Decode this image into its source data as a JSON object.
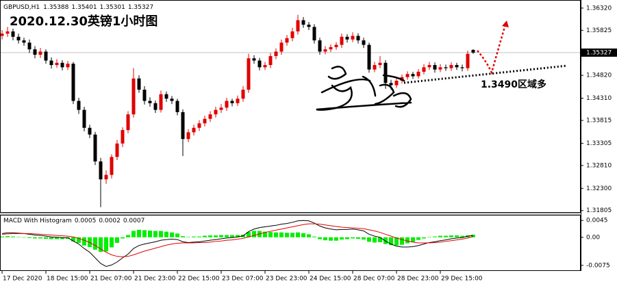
{
  "chart_data": {
    "type": "candlestick",
    "symbol": "GBPUSD,H1",
    "title": "2020.12.30英镑1小时图",
    "annotation": "1.3490区域多",
    "up_color": "#e00000",
    "down_color": "#000000",
    "grid": false,
    "categories": [
      "17 Dec 2020",
      null,
      null,
      null,
      null,
      null,
      null,
      null,
      "18 Dec 15:00",
      null,
      null,
      null,
      null,
      null,
      null,
      null,
      "21 Dec 07:00",
      null,
      null,
      null,
      null,
      null,
      null,
      null,
      "21 Dec 23:00",
      null,
      null,
      null,
      null,
      null,
      null,
      null,
      "22 Dec 15:00",
      null,
      null,
      null,
      null,
      null,
      null,
      null,
      "23 Dec 07:00",
      null,
      null,
      null,
      null,
      null,
      null,
      null,
      "23 Dec 23:00",
      null,
      null,
      null,
      null,
      null,
      null,
      null,
      "24 Dec 15:00",
      null,
      null,
      null,
      null,
      null,
      null,
      null,
      "28 Dec 07:00",
      null,
      null,
      null,
      null,
      null,
      null,
      null,
      "28 Dec 23:00",
      null,
      null,
      null,
      null,
      null,
      null,
      null,
      "29 Dec 15:00",
      null,
      null,
      null,
      null,
      null,
      null
    ],
    "open": [
      1.357,
      1.3575,
      1.358,
      1.3568,
      1.356,
      1.3555,
      1.354,
      1.3528,
      1.3535,
      1.3515,
      1.3505,
      1.351,
      1.35,
      1.3508,
      1.3425,
      1.3405,
      1.3365,
      1.335,
      1.329,
      1.325,
      1.326,
      1.33,
      1.333,
      1.336,
      1.3395,
      1.3475,
      1.345,
      1.3425,
      1.342,
      1.3405,
      1.344,
      1.343,
      1.3425,
      1.34,
      1.334,
      1.3355,
      1.3365,
      1.3375,
      1.3385,
      1.3395,
      1.3405,
      1.341,
      1.3425,
      1.342,
      1.343,
      1.345,
      1.352,
      1.3515,
      1.35,
      1.3505,
      1.3525,
      1.3535,
      1.3555,
      1.3565,
      1.358,
      1.3605,
      1.3595,
      1.359,
      1.356,
      1.3535,
      1.354,
      1.3545,
      1.355,
      1.3568,
      1.3562,
      1.357,
      1.356,
      1.355,
      1.3495,
      1.3505,
      1.351,
      1.3465,
      1.346,
      1.347,
      1.3478,
      1.3485,
      1.348,
      1.349,
      1.35,
      1.3505,
      1.3495,
      1.35,
      1.3498,
      1.3505,
      1.35,
      1.3498,
      1.35388
    ],
    "high": [
      1.3583,
      1.359,
      1.3586,
      1.3575,
      1.3566,
      1.3562,
      1.3547,
      1.3543,
      1.354,
      1.3522,
      1.3518,
      1.3516,
      1.3514,
      1.3512,
      1.3432,
      1.3412,
      1.3372,
      1.3356,
      1.3298,
      1.327,
      1.3306,
      1.3338,
      1.3366,
      1.3402,
      1.3498,
      1.3482,
      1.3458,
      1.3433,
      1.3426,
      1.3448,
      1.3446,
      1.3436,
      1.343,
      1.3406,
      1.3362,
      1.3372,
      1.3382,
      1.3392,
      1.3402,
      1.3412,
      1.3418,
      1.3432,
      1.343,
      1.3437,
      1.3458,
      1.353,
      1.3527,
      1.3521,
      1.3512,
      1.3532,
      1.3542,
      1.3562,
      1.3572,
      1.3588,
      1.3617,
      1.3612,
      1.3601,
      1.3596,
      1.3566,
      1.3547,
      1.3551,
      1.3556,
      1.3575,
      1.3574,
      1.3578,
      1.3576,
      1.3566,
      1.3555,
      1.3512,
      1.3525,
      1.3516,
      1.3472,
      1.3476,
      1.3484,
      1.3491,
      1.349,
      1.3496,
      1.3507,
      1.3512,
      1.3511,
      1.3507,
      1.3506,
      1.3511,
      1.351,
      1.3506,
      1.3537,
      1.35401
    ],
    "low": [
      1.3562,
      1.3568,
      1.356,
      1.3553,
      1.3548,
      1.3532,
      1.352,
      1.3521,
      1.3508,
      1.3497,
      1.3499,
      1.3493,
      1.3494,
      1.3418,
      1.3396,
      1.3357,
      1.3342,
      1.3282,
      1.3188,
      1.324,
      1.3252,
      1.3293,
      1.3322,
      1.3353,
      1.3388,
      1.3443,
      1.3417,
      1.3412,
      1.3398,
      1.3399,
      1.3423,
      1.3418,
      1.3393,
      1.3302,
      1.3333,
      1.3348,
      1.3358,
      1.3368,
      1.3378,
      1.3388,
      1.3398,
      1.3403,
      1.3413,
      1.3414,
      1.3423,
      1.3443,
      1.3508,
      1.3493,
      1.3494,
      1.3498,
      1.3518,
      1.3528,
      1.3548,
      1.3558,
      1.3573,
      1.3588,
      1.3583,
      1.3553,
      1.3528,
      1.3529,
      1.3534,
      1.3539,
      1.3543,
      1.3555,
      1.3556,
      1.3553,
      1.3543,
      1.3488,
      1.3489,
      1.3498,
      1.3452,
      1.345,
      1.3454,
      1.3464,
      1.3472,
      1.3474,
      1.3475,
      1.3484,
      1.3494,
      1.3488,
      1.3489,
      1.3492,
      1.3492,
      1.3494,
      1.3491,
      1.3492,
      1.35301
    ],
    "close": [
      1.3575,
      1.358,
      1.3568,
      1.356,
      1.3555,
      1.354,
      1.3528,
      1.3535,
      1.3515,
      1.3505,
      1.351,
      1.35,
      1.3508,
      1.3425,
      1.3405,
      1.3365,
      1.335,
      1.329,
      1.325,
      1.326,
      1.33,
      1.333,
      1.336,
      1.3395,
      1.3475,
      1.345,
      1.3425,
      1.342,
      1.3405,
      1.344,
      1.343,
      1.3425,
      1.34,
      1.334,
      1.3355,
      1.3365,
      1.3375,
      1.3385,
      1.3395,
      1.3405,
      1.341,
      1.3425,
      1.342,
      1.343,
      1.345,
      1.352,
      1.3515,
      1.35,
      1.3505,
      1.3525,
      1.3535,
      1.3555,
      1.3565,
      1.358,
      1.3605,
      1.3595,
      1.359,
      1.356,
      1.3535,
      1.354,
      1.3545,
      1.355,
      1.3568,
      1.3562,
      1.357,
      1.356,
      1.355,
      1.3495,
      1.3505,
      1.351,
      1.3465,
      1.346,
      1.347,
      1.3478,
      1.3485,
      1.348,
      1.349,
      1.35,
      1.3505,
      1.3495,
      1.35,
      1.3498,
      1.3505,
      1.35,
      1.3498,
      1.353,
      1.35327
    ],
    "ylim": [
      1.3177,
      1.3647
    ],
    "yticks": [
      {
        "value": 1.3632,
        "label": "1.36320"
      },
      1.35825,
      {
        "value": 1.3482,
        "label": "1.34820"
      },
      {
        "value": 1.3431,
        "label": "1.34310"
      },
      1.33815,
      1.33305,
      {
        "value": 1.3281,
        "label": "1.32810"
      },
      {
        "value": 1.323,
        "label": "1.32300"
      },
      1.31805
    ],
    "indicator": {
      "type": "macd",
      "title": "MACD With Histogram",
      "ylim": [
        -0.009,
        0.006
      ],
      "yticks": [
        0.0045,
        {
          "value": 0,
          "label": "0.00"
        },
        -0.0075
      ],
      "series": [
        {
          "style": "line",
          "color": "#000000",
          "values": [
            0.001,
            0.0012,
            0.0012,
            0.0011,
            0.001,
            0.0008,
            0.0006,
            0.0005,
            0.0003,
            0.0001,
            0.0,
            -0.0001,
            -0.0001,
            -0.001,
            -0.0018,
            -0.003,
            -0.004,
            -0.0055,
            -0.007,
            -0.0078,
            -0.0074,
            -0.0066,
            -0.0055,
            -0.0045,
            -0.003,
            -0.0022,
            -0.0018,
            -0.0015,
            -0.0012,
            -0.0008,
            -0.0006,
            -0.0005,
            -0.0006,
            -0.0012,
            -0.0014,
            -0.0013,
            -0.0012,
            -0.001,
            -0.0008,
            -0.0006,
            -0.0004,
            -0.0002,
            -0.0001,
            0.0001,
            0.0004,
            0.0015,
            0.0022,
            0.0026,
            0.0028,
            0.003,
            0.0032,
            0.0035,
            0.0037,
            0.004,
            0.0044,
            0.0045,
            0.0044,
            0.0038,
            0.003,
            0.0025,
            0.0022,
            0.002,
            0.0021,
            0.0021,
            0.0022,
            0.002,
            0.0017,
            0.0008,
            0.0003,
            0.0,
            -0.001,
            -0.0018,
            -0.0024,
            -0.0026,
            -0.0026,
            -0.0025,
            -0.0022,
            -0.0018,
            -0.0014,
            -0.0012,
            -0.0009,
            -0.0007,
            -0.0004,
            -0.0002,
            -0.0001,
            0.0003,
            0.0005
          ]
        },
        {
          "style": "line",
          "color": "#e00000",
          "values": [
            0.0008,
            0.0009,
            0.001,
            0.001,
            0.001,
            0.001,
            0.0009,
            0.0008,
            0.0007,
            0.0006,
            0.0005,
            0.0004,
            0.0003,
            0.0001,
            -0.0003,
            -0.0008,
            -0.0014,
            -0.0022,
            -0.0031,
            -0.004,
            -0.0047,
            -0.0051,
            -0.0052,
            -0.0051,
            -0.0047,
            -0.0042,
            -0.0037,
            -0.0033,
            -0.0029,
            -0.0025,
            -0.0021,
            -0.0018,
            -0.0016,
            -0.0015,
            -0.0015,
            -0.0015,
            -0.0014,
            -0.0014,
            -0.0013,
            -0.0011,
            -0.001,
            -0.0008,
            -0.0007,
            -0.0005,
            -0.0003,
            0.0001,
            0.0005,
            0.0009,
            0.0013,
            0.0016,
            0.0019,
            0.0022,
            0.0025,
            0.0028,
            0.0031,
            0.0034,
            0.0036,
            0.0036,
            0.0035,
            0.0033,
            0.0031,
            0.0029,
            0.0027,
            0.0026,
            0.0025,
            0.0024,
            0.0023,
            0.002,
            0.0017,
            0.0013,
            0.0008,
            0.0003,
            -0.0002,
            -0.0006,
            -0.001,
            -0.0013,
            -0.0015,
            -0.0015,
            -0.0015,
            -0.0014,
            -0.0013,
            -0.0011,
            -0.0009,
            -0.0007,
            -0.0005,
            -0.0002,
            0.0002
          ]
        },
        {
          "style": "bar",
          "color": "#00ee00",
          "values": [
            0.0002,
            0.0003,
            0.0002,
            0.0001,
            0.0,
            -0.0002,
            -0.0003,
            -0.0003,
            -0.0004,
            -0.0005,
            -0.0005,
            -0.0005,
            -0.0004,
            -0.0011,
            -0.0015,
            -0.0022,
            -0.0026,
            -0.0033,
            -0.0039,
            -0.0038,
            -0.0027,
            -0.0015,
            -0.0003,
            0.0006,
            0.0017,
            0.002,
            0.0019,
            0.0018,
            0.0017,
            0.0017,
            0.0015,
            0.0013,
            0.001,
            0.0003,
            0.0001,
            0.0002,
            0.0002,
            0.0004,
            0.0005,
            0.0005,
            0.0006,
            0.0006,
            0.0006,
            0.0006,
            0.0007,
            0.0014,
            0.0017,
            0.0017,
            0.0015,
            0.0014,
            0.0013,
            0.0013,
            0.0012,
            0.0012,
            0.0013,
            0.0011,
            0.0008,
            0.0002,
            -0.0005,
            -0.0008,
            -0.0009,
            -0.0009,
            -0.0006,
            -0.0005,
            -0.0003,
            -0.0004,
            -0.0006,
            -0.0012,
            -0.0014,
            -0.0013,
            -0.0018,
            -0.0021,
            -0.0022,
            -0.002,
            -0.0016,
            -0.0012,
            -0.0007,
            -0.0003,
            0.0001,
            0.0002,
            0.0004,
            0.0004,
            0.0005,
            0.0005,
            0.0004,
            0.0005,
            0.0007
          ]
        }
      ]
    }
  }
}
